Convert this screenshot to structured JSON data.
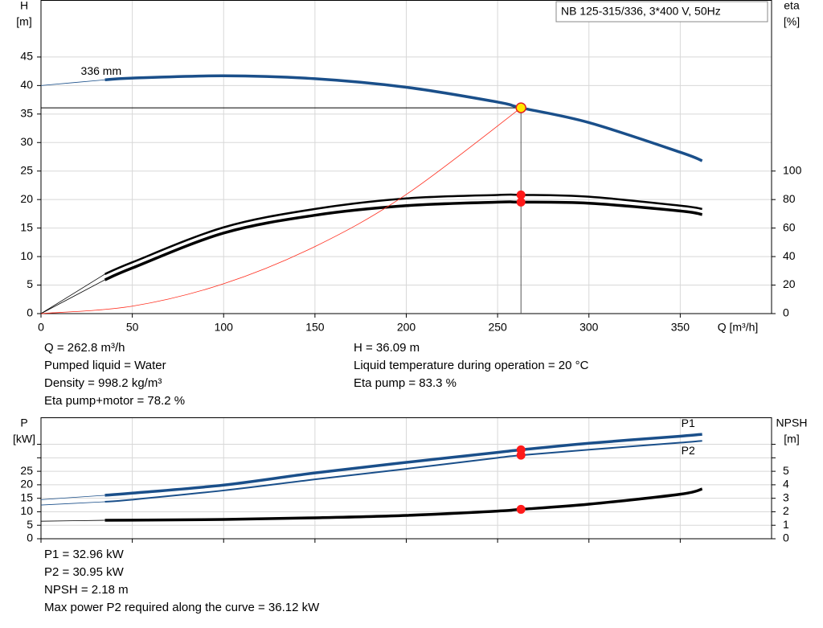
{
  "chart_data": [
    {
      "type": "line",
      "title": "NB 125-315/336, 3*400 V, 50Hz",
      "xlabel": "Q [m³/h]",
      "ylabel": [
        "H",
        "[m]"
      ],
      "y2label": [
        "eta",
        "[%]"
      ],
      "xlim": [
        0,
        400
      ],
      "xticks": [
        0,
        50,
        100,
        150,
        200,
        250,
        300,
        350
      ],
      "ylim": [
        0,
        55
      ],
      "yticks": [
        0,
        5,
        10,
        15,
        20,
        25,
        30,
        35,
        40,
        45
      ],
      "y2lim": [
        0,
        220
      ],
      "y2ticks": [
        0,
        20,
        40,
        60,
        80,
        100
      ],
      "grid": true,
      "operating_q": 262.8,
      "x": [
        0,
        35,
        50,
        100,
        150,
        200,
        250,
        262.8,
        300,
        350,
        362
      ],
      "series": [
        {
          "name": "336 mm",
          "color": "#1a4f8a",
          "values": [
            40,
            41,
            41.3,
            41.7,
            41.2,
            39.7,
            37.1,
            36.09,
            33.5,
            28.3,
            26.8
          ]
        },
        {
          "color": "#000000",
          "axis": "y2",
          "values": [
            0,
            27.7,
            36,
            60.5,
            73.4,
            80.8,
            83.2,
            83.3,
            82,
            75.7,
            73.4
          ]
        },
        {
          "color": "#000000",
          "axis": "y2",
          "values": [
            0,
            23.7,
            32,
            56.5,
            69,
            75.7,
            78.2,
            78.2,
            77.4,
            72,
            69.5
          ]
        },
        {
          "color": "#ff2a1a",
          "x": [
            0,
            50,
            100,
            150,
            200,
            262.8
          ],
          "values": [
            0,
            1.31,
            5.23,
            11.76,
            20.9,
            36.09
          ]
        }
      ],
      "notes": [
        [
          "Q = 262.8 m³/h",
          "Pumped liquid = Water",
          "Density = 998.2 kg/m³",
          "Eta pump+motor = 78.2 %"
        ],
        [
          "H = 36.09 m",
          "Liquid temperature during operation = 20 °C",
          "Eta pump = 83.3 %"
        ]
      ]
    },
    {
      "type": "line",
      "ylabel": [
        "P",
        "[kW]"
      ],
      "y2label": [
        "NPSH",
        "[m]"
      ],
      "xlim": [
        0,
        400
      ],
      "xticks": [
        {
          "value": 0,
          "label": null
        },
        {
          "value": 50,
          "label": null
        },
        {
          "value": 100,
          "label": null
        },
        {
          "value": 150,
          "label": null
        },
        {
          "value": 200,
          "label": null
        },
        {
          "value": 250,
          "label": null
        },
        {
          "value": 300,
          "label": null
        },
        {
          "value": 350,
          "label": null
        }
      ],
      "ylim": [
        0,
        45
      ],
      "yticks": [
        0,
        5,
        10,
        15,
        20,
        25,
        {
          "value": 30,
          "label": null
        },
        {
          "value": 35,
          "label": null
        }
      ],
      "y2lim": [
        0,
        9
      ],
      "y2ticks": [
        0,
        1,
        2,
        3,
        4,
        5,
        {
          "value": 6,
          "label": null
        },
        {
          "value": 7,
          "label": null
        }
      ],
      "grid": true,
      "operating_q": 262.8,
      "x": [
        0,
        35,
        50,
        100,
        150,
        200,
        250,
        262.8,
        300,
        350,
        362
      ],
      "series": [
        {
          "name": "P1",
          "color": "#1a4f8a",
          "values": [
            14.5,
            16.1,
            16.9,
            19.9,
            24.4,
            28.3,
            32,
            32.96,
            35.4,
            38,
            38.7
          ]
        },
        {
          "name": "P2",
          "color": "#1a4f8a",
          "values": [
            12.5,
            13.7,
            14.5,
            17.9,
            22,
            25.9,
            30,
            30.95,
            33,
            35.6,
            36.3
          ]
        },
        {
          "color": "#000000",
          "axis": "y2",
          "values": [
            1.3,
            1.37,
            1.38,
            1.43,
            1.55,
            1.73,
            2.05,
            2.18,
            2.56,
            3.3,
            3.69
          ]
        }
      ],
      "notes": [
        [
          "P1 = 32.96 kW",
          "P2 = 30.95 kW",
          "NPSH = 2.18 m",
          "Max power P2 required along the curve = 36.12 kW"
        ]
      ]
    }
  ]
}
